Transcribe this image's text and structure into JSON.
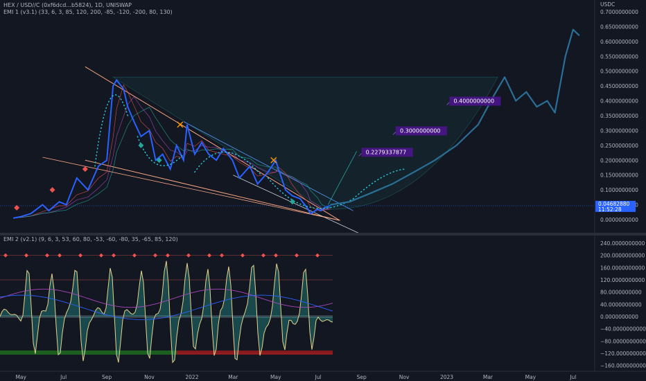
{
  "header": {
    "symbol_line": "HEX / USD//C (0xf6dcd...b5824), 1D, UNISWAP",
    "indicator1": "EMI 1 (v3.1) (33, 6, 3, 85, 120, 200, -85, -120, -200, 80, 130)",
    "indicator2": "EMI 2 (v2.1) (9, 6, 3, 53, 60, 80, -53, -60, -80, 35, -65, 85, 120)"
  },
  "price_axis": {
    "currency": "USDC",
    "ticks": [
      "0.7000000000",
      "0.6500000000",
      "0.6000000000",
      "0.5500000000",
      "0.5000000000",
      "0.4500000000",
      "0.4000000000",
      "0.3500000000",
      "0.3000000000",
      "0.2500000000",
      "0.2000000000",
      "0.1500000000",
      "0.1000000000",
      "0.0500000000",
      "0.0000000000"
    ],
    "current_price": "0.04682880",
    "countdown": "11:52:28",
    "price_color": "#2962ff"
  },
  "osc_axis": {
    "ticks": [
      "240.0000000000",
      "200.0000000000",
      "160.0000000000",
      "120.0000000000",
      "80.0000000000",
      "40.0000000000",
      "0.0000000000",
      "−40.0000000000",
      "−80.0000000000",
      "−120.0000000000",
      "−160.0000000000"
    ]
  },
  "time_axis": {
    "labels": [
      "May",
      "Jul",
      "Sep",
      "Nov",
      "2022",
      "Mar",
      "May",
      "Jul",
      "Sep",
      "Nov",
      "2023",
      "Mar",
      "May",
      "Jul"
    ]
  },
  "chart_data": {
    "type": "line",
    "price_series": {
      "x": [
        "2021-04-20",
        "2021-05-01",
        "2021-05-15",
        "2021-06-01",
        "2021-06-10",
        "2021-06-25",
        "2021-07-05",
        "2021-07-20",
        "2021-08-05",
        "2021-08-20",
        "2021-09-01",
        "2021-09-10",
        "2021-09-15",
        "2021-09-25",
        "2021-10-01",
        "2021-10-10",
        "2021-10-20",
        "2021-11-01",
        "2021-11-10",
        "2021-11-20",
        "2021-12-01",
        "2021-12-10",
        "2021-12-20",
        "2021-12-25",
        "2022-01-05",
        "2022-01-15",
        "2022-01-25",
        "2022-02-05",
        "2022-02-15",
        "2022-02-28",
        "2022-03-10",
        "2022-03-25",
        "2022-04-05",
        "2022-04-20",
        "2022-05-01",
        "2022-05-05",
        "2022-05-15",
        "2022-05-25",
        "2022-06-05",
        "2022-06-15",
        "2022-06-20",
        "2022-06-30",
        "2022-07-05",
        "2022-07-10",
        "2022-07-18"
      ],
      "y": [
        0.005,
        0.01,
        0.02,
        0.05,
        0.03,
        0.06,
        0.05,
        0.14,
        0.1,
        0.18,
        0.2,
        0.45,
        0.47,
        0.44,
        0.38,
        0.33,
        0.28,
        0.3,
        0.2,
        0.22,
        0.17,
        0.25,
        0.2,
        0.32,
        0.22,
        0.26,
        0.22,
        0.2,
        0.24,
        0.2,
        0.14,
        0.18,
        0.12,
        0.16,
        0.2,
        0.17,
        0.1,
        0.08,
        0.07,
        0.04,
        0.02,
        0.035,
        0.03,
        0.04,
        0.047
      ],
      "color": "#2962ff"
    },
    "projection": {
      "labels": [
        "0.2279337877",
        "0.3000000000",
        "0.4000000000"
      ],
      "values": [
        0.2279337877,
        0.3,
        0.4
      ],
      "path_x": [
        "2022-07-18",
        "2022-08-15",
        "2022-09-15",
        "2022-10-15",
        "2022-11-15",
        "2022-12-15",
        "2023-01-15",
        "2023-02-15",
        "2023-03-10",
        "2023-03-25",
        "2023-04-10",
        "2023-04-25",
        "2023-05-10",
        "2023-05-25",
        "2023-06-05",
        "2023-06-20",
        "2023-07-01",
        "2023-07-10"
      ],
      "path_y": [
        0.05,
        0.06,
        0.09,
        0.12,
        0.16,
        0.2,
        0.25,
        0.32,
        0.42,
        0.48,
        0.4,
        0.43,
        0.38,
        0.4,
        0.36,
        0.55,
        0.64,
        0.62
      ],
      "color": "#2a6f97"
    },
    "oscillator": {
      "levels": [
        200,
        120,
        -120
      ],
      "colors": {
        "up": "#26a69a",
        "down": "#ef5350",
        "signal": "#e6d38a"
      }
    },
    "xlabel": "",
    "ylabel": "USDC",
    "ylim": [
      0,
      0.7
    ]
  }
}
